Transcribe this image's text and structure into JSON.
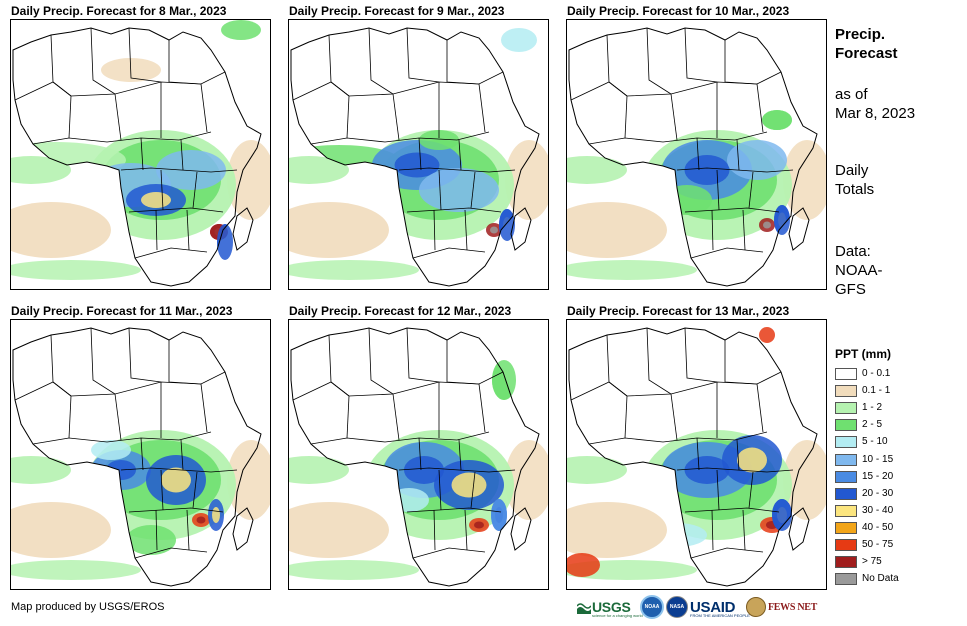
{
  "panels": [
    {
      "title": "Daily Precip. Forecast for 8 Mar., 2023"
    },
    {
      "title": "Daily Precip. Forecast for 9 Mar., 2023"
    },
    {
      "title": "Daily Precip. Forecast for 10 Mar., 2023"
    },
    {
      "title": "Daily Precip. Forecast for 11 Mar., 2023"
    },
    {
      "title": "Daily Precip. Forecast for 12 Mar., 2023"
    },
    {
      "title": "Daily Precip. Forecast for 13 Mar., 2023"
    }
  ],
  "side": {
    "title_line1": "Precip.",
    "title_line2": "Forecast",
    "asof_line1": "as of",
    "asof_line2": "Mar 8, 2023",
    "totals_line1": "Daily",
    "totals_line2": "Totals",
    "data_line1": "Data:",
    "data_line2": "NOAA-",
    "data_line3": "GFS"
  },
  "legend": {
    "title": "PPT (mm)",
    "items": [
      {
        "label": "0 - 0.1",
        "color": "#ffffff"
      },
      {
        "label": "0.1 - 1",
        "color": "#f1dcbc"
      },
      {
        "label": "1 - 2",
        "color": "#b5f2b0"
      },
      {
        "label": "2 - 5",
        "color": "#6fe070"
      },
      {
        "label": "5 - 10",
        "color": "#b3ecf2"
      },
      {
        "label": "10 - 15",
        "color": "#7fb8ee"
      },
      {
        "label": "15 - 20",
        "color": "#4a8be3"
      },
      {
        "label": "20 - 30",
        "color": "#2258d1"
      },
      {
        "label": "30 - 40",
        "color": "#fbe57f"
      },
      {
        "label": "40 - 50",
        "color": "#f2a519"
      },
      {
        "label": "50 - 75",
        "color": "#e63a14"
      },
      {
        "label": "> 75",
        "color": "#a01d1d"
      },
      {
        "label": "No Data",
        "color": "#9a9a9a"
      }
    ]
  },
  "credit": "Map produced by USGS/EROS",
  "logos": {
    "usgs": "USGS",
    "usgs_tagline": "science for a changing world",
    "noaa": "NOAA",
    "nasa": "NASA",
    "usaid": "USAID",
    "usaid_tagline": "FROM THE AMERICAN PEOPLE",
    "fewsnet": "FEWS NET"
  },
  "chart_data": {
    "type": "heatmap",
    "title": "Precip. Forecast",
    "subtitle": "Daily Totals, as of Mar 8, 2023, Data: NOAA-GFS",
    "categories": [
      "8 Mar., 2023",
      "9 Mar., 2023",
      "10 Mar., 2023",
      "11 Mar., 2023",
      "12 Mar., 2023",
      "13 Mar., 2023"
    ],
    "bins_mm": [
      "0 - 0.1",
      "0.1 - 1",
      "1 - 2",
      "2 - 5",
      "5 - 10",
      "10 - 15",
      "15 - 20",
      "20 - 30",
      "30 - 40",
      "40 - 50",
      "50 - 75",
      "> 75",
      "No Data"
    ],
    "legend_position": "right"
  }
}
